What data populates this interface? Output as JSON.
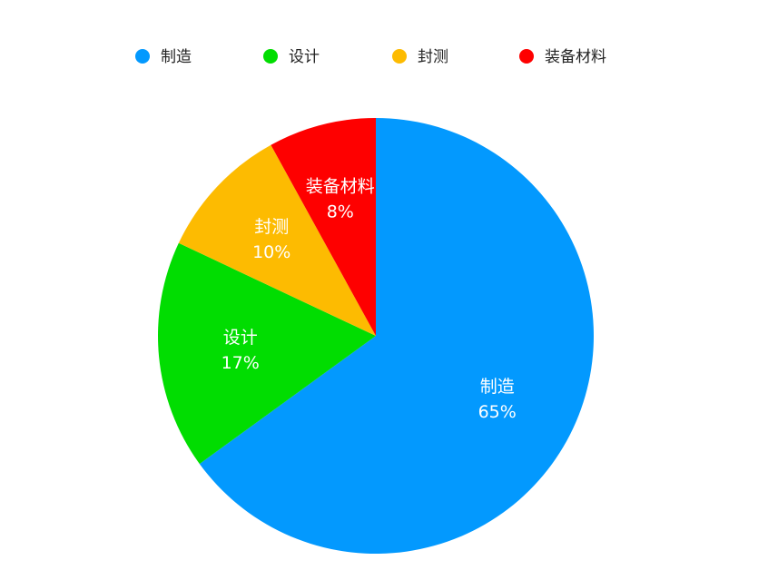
{
  "chart_data": {
    "type": "pie",
    "categories": [
      "制造",
      "设计",
      "封测",
      "装备材料"
    ],
    "values": [
      65,
      17,
      10,
      8
    ],
    "labels": [
      "65%",
      "17%",
      "10%",
      "8%"
    ],
    "colors": [
      "#0399FE",
      "#01DD01",
      "#FDBB01",
      "#FE0000"
    ],
    "legend": {
      "position": "top"
    },
    "title": ""
  }
}
